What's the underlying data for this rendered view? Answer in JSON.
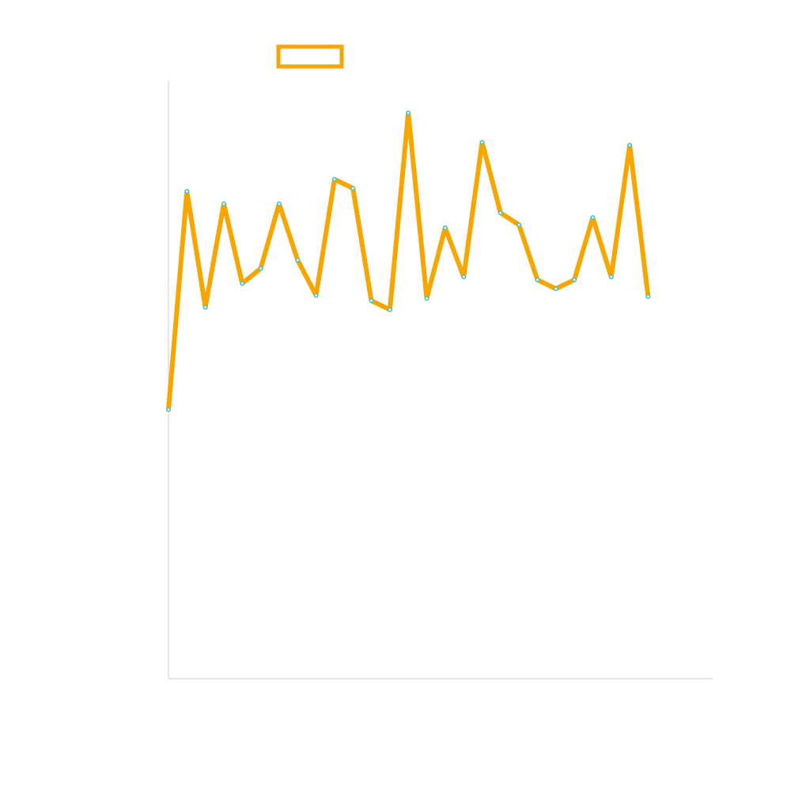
{
  "chart_data": {
    "type": "line",
    "title": "",
    "xlabel": "",
    "ylabel": "",
    "x": [
      0,
      1,
      2,
      3,
      4,
      5,
      6,
      7,
      8,
      9,
      10,
      11,
      12,
      13,
      14,
      15,
      16,
      17,
      18,
      19,
      20,
      21,
      22,
      23,
      24,
      25,
      26
    ],
    "xlim": [
      0,
      29.5
    ],
    "ylim": [
      0,
      100
    ],
    "grid": false,
    "legend": "top-left",
    "series": [
      {
        "name": "",
        "values": [
          45,
          81.5,
          62.1,
          79.4,
          66.1,
          68.6,
          79.4,
          70,
          64.1,
          83.5,
          82,
          63.2,
          61.7,
          94.6,
          63.6,
          75.4,
          67.2,
          89.7,
          77.9,
          75.9,
          66.7,
          65.2,
          66.7,
          77.1,
          67.2,
          89.2,
          63.9
        ]
      }
    ],
    "colors": {
      "line": "#f7a600",
      "marker": "#3fc6c6",
      "axis": "#dddddd",
      "background": "#ffffff"
    }
  }
}
